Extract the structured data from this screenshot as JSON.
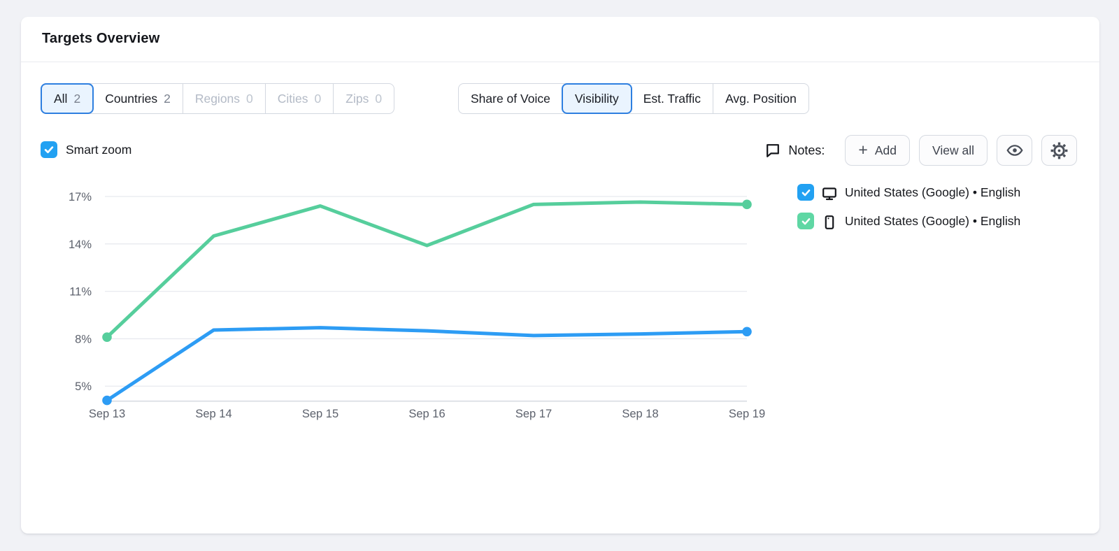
{
  "colors": {
    "page_bg": "#F1F2F6",
    "accent": "#2E7FE0",
    "accent_bg": "#EAF4FE",
    "border": "#D3D8E0",
    "btn_border": "#D6DAE1",
    "checkbox_blue": "#22A1F2",
    "checkbox_green": "#5FD7A4",
    "line_blue": "#2D9CF4",
    "line_green": "#56CE9C",
    "gridline": "#E8EAEF",
    "axis_line": "#D8DCE2",
    "axis_text": "#5C616C"
  },
  "card": {
    "title": "Targets Overview"
  },
  "target_tabs": [
    {
      "label": "All",
      "count": "2",
      "state": "active"
    },
    {
      "label": "Countries",
      "count": "2",
      "state": "enabled"
    },
    {
      "label": "Regions",
      "count": "0",
      "state": "disabled"
    },
    {
      "label": "Cities",
      "count": "0",
      "state": "disabled"
    },
    {
      "label": "Zips",
      "count": "0",
      "state": "disabled"
    }
  ],
  "metric_tabs": [
    {
      "label": "Share of Voice",
      "state": "enabled"
    },
    {
      "label": "Visibility",
      "state": "active"
    },
    {
      "label": "Est. Traffic",
      "state": "enabled"
    },
    {
      "label": "Avg. Position",
      "state": "enabled"
    }
  ],
  "controls": {
    "smart_zoom_label": "Smart zoom",
    "smart_zoom_checked": true,
    "notes_label": "Notes:",
    "add_plus": "+",
    "add_button": "Add",
    "view_all_button": "View all"
  },
  "legend": [
    {
      "label": "United States (Google) • English",
      "device": "desktop",
      "checked": true,
      "color": "#2D9CF4"
    },
    {
      "label": "United States (Google) • English",
      "device": "mobile",
      "checked": true,
      "color": "#56CE9C"
    }
  ],
  "chart_data": {
    "type": "line",
    "title": "",
    "xlabel": "",
    "ylabel": "",
    "x": [
      "Sep 13",
      "Sep 14",
      "Sep 15",
      "Sep 16",
      "Sep 17",
      "Sep 18",
      "Sep 19"
    ],
    "series": [
      {
        "name": "United States (Google) • English — desktop",
        "color": "#2D9CF4",
        "values": [
          4.1,
          8.55,
          8.7,
          8.5,
          8.2,
          8.3,
          8.45
        ]
      },
      {
        "name": "United States (Google) • English — mobile",
        "color": "#56CE9C",
        "values": [
          8.1,
          14.5,
          16.4,
          13.9,
          16.5,
          16.65,
          16.5
        ]
      }
    ],
    "yticks": [
      5,
      8,
      11,
      14,
      17
    ],
    "ytick_suffix": "%",
    "ylim": [
      4.05,
      17.6
    ],
    "grid": true,
    "legend_position": "right",
    "endpoint_markers": true
  }
}
